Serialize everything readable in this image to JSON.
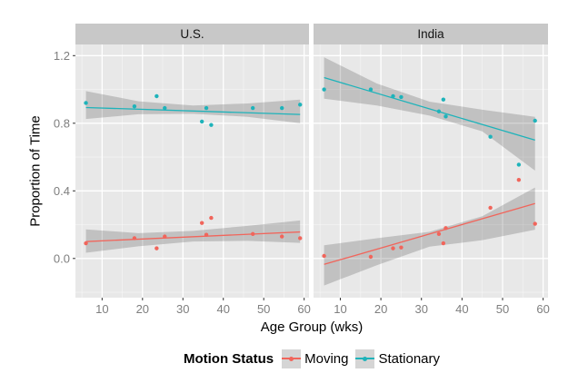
{
  "chart_data": {
    "type": "scatter",
    "title": "",
    "xlabel": "Age Group (wks)",
    "ylabel": "Proportion of Time",
    "grid": "on",
    "legend_position": "bottom",
    "xlim": [
      3.4,
      61.2
    ],
    "ylim": [
      -0.232,
      1.266
    ],
    "x_ticks": [
      10,
      20,
      30,
      40,
      50,
      60
    ],
    "x_minor_ticks": [
      5,
      15,
      25,
      35,
      45,
      55
    ],
    "y_ticks": [
      {
        "value": 0.0,
        "label": "0.0"
      },
      {
        "value": 0.4,
        "label": "0.4"
      },
      {
        "value": 0.8,
        "label": "0.8"
      },
      {
        "value": 1.2,
        "label": "1.2"
      }
    ],
    "y_minor_ticks": [
      -0.2,
      0.2,
      0.6,
      1.0
    ],
    "facets": [
      {
        "label": "U.S.",
        "series": [
          {
            "name": "Moving",
            "points": [
              [
                6,
                0.09
              ],
              [
                18,
                0.12
              ],
              [
                23.5,
                0.06
              ],
              [
                25.5,
                0.13
              ],
              [
                34.7,
                0.21
              ],
              [
                35.8,
                0.14
              ],
              [
                37,
                0.24
              ],
              [
                47.3,
                0.145
              ],
              [
                54.5,
                0.13
              ],
              [
                59,
                0.12
              ]
            ],
            "trend": [
              6,
              0.1,
              59,
              0.157
            ],
            "band": [
              [
                6,
                0.034,
                0.172
              ],
              [
                19,
                0.072,
                0.15
              ],
              [
                32.5,
                0.1,
                0.163
              ],
              [
                46,
                0.104,
                0.193
              ],
              [
                59,
                0.092,
                0.225
              ]
            ]
          },
          {
            "name": "Stationary",
            "points": [
              [
                6,
                0.92
              ],
              [
                18,
                0.9
              ],
              [
                23.5,
                0.96
              ],
              [
                25.5,
                0.89
              ],
              [
                34.7,
                0.81
              ],
              [
                35.8,
                0.89
              ],
              [
                37,
                0.79
              ],
              [
                47.3,
                0.89
              ],
              [
                54.5,
                0.89
              ],
              [
                59,
                0.91
              ]
            ],
            "trend": [
              6,
              0.893,
              59,
              0.852
            ],
            "band": [
              [
                6,
                0.825,
                0.99
              ],
              [
                19,
                0.853,
                0.93
              ],
              [
                32.5,
                0.856,
                0.905
              ],
              [
                46,
                0.838,
                0.917
              ],
              [
                59,
                0.8,
                0.94
              ]
            ]
          }
        ]
      },
      {
        "label": "India",
        "series": [
          {
            "name": "Moving",
            "points": [
              [
                6,
                0.015
              ],
              [
                17.5,
                0.01
              ],
              [
                23,
                0.06
              ],
              [
                25,
                0.065
              ],
              [
                34.3,
                0.145
              ],
              [
                35.4,
                0.09
              ],
              [
                36,
                0.18
              ],
              [
                47,
                0.3
              ],
              [
                54,
                0.465
              ],
              [
                58,
                0.205
              ]
            ],
            "trend": [
              6,
              -0.035,
              58,
              0.325
            ],
            "band": [
              [
                6,
                -0.16,
                0.078
              ],
              [
                19,
                -0.04,
                0.12
              ],
              [
                32,
                0.07,
                0.158
              ],
              [
                45,
                0.108,
                0.25
              ],
              [
                58,
                0.17,
                0.42
              ]
            ]
          },
          {
            "name": "Stationary",
            "points": [
              [
                6,
                1.0
              ],
              [
                17.5,
                1.0
              ],
              [
                23,
                0.96
              ],
              [
                25,
                0.955
              ],
              [
                34.3,
                0.87
              ],
              [
                35.4,
                0.94
              ],
              [
                36,
                0.84
              ],
              [
                47,
                0.72
              ],
              [
                54,
                0.555
              ],
              [
                58,
                0.815
              ]
            ],
            "trend": [
              6,
              1.07,
              58,
              0.7
            ],
            "band": [
              [
                6,
                0.945,
                1.19
              ],
              [
                19,
                0.905,
                1.035
              ],
              [
                32,
                0.845,
                0.928
              ],
              [
                45,
                0.752,
                0.88
              ],
              [
                58,
                0.52,
                0.838
              ]
            ]
          }
        ]
      }
    ]
  },
  "legend": {
    "title": "Motion Status",
    "entries": [
      {
        "label": "Moving",
        "color": "#F1655B"
      },
      {
        "label": "Stationary",
        "color": "#1EB3BA"
      }
    ]
  },
  "colors": {
    "panel_bg": "#E8E8E8",
    "strip_bg": "#C8C8C8",
    "grid": "#FFFFFF",
    "band": "rgba(0,0,0,0.17)",
    "tick_text": "#7E7E7E",
    "tick_mark": "#333333",
    "axis_text": "#000000",
    "moving": "#F1655B",
    "stationary": "#1EB3BA"
  }
}
